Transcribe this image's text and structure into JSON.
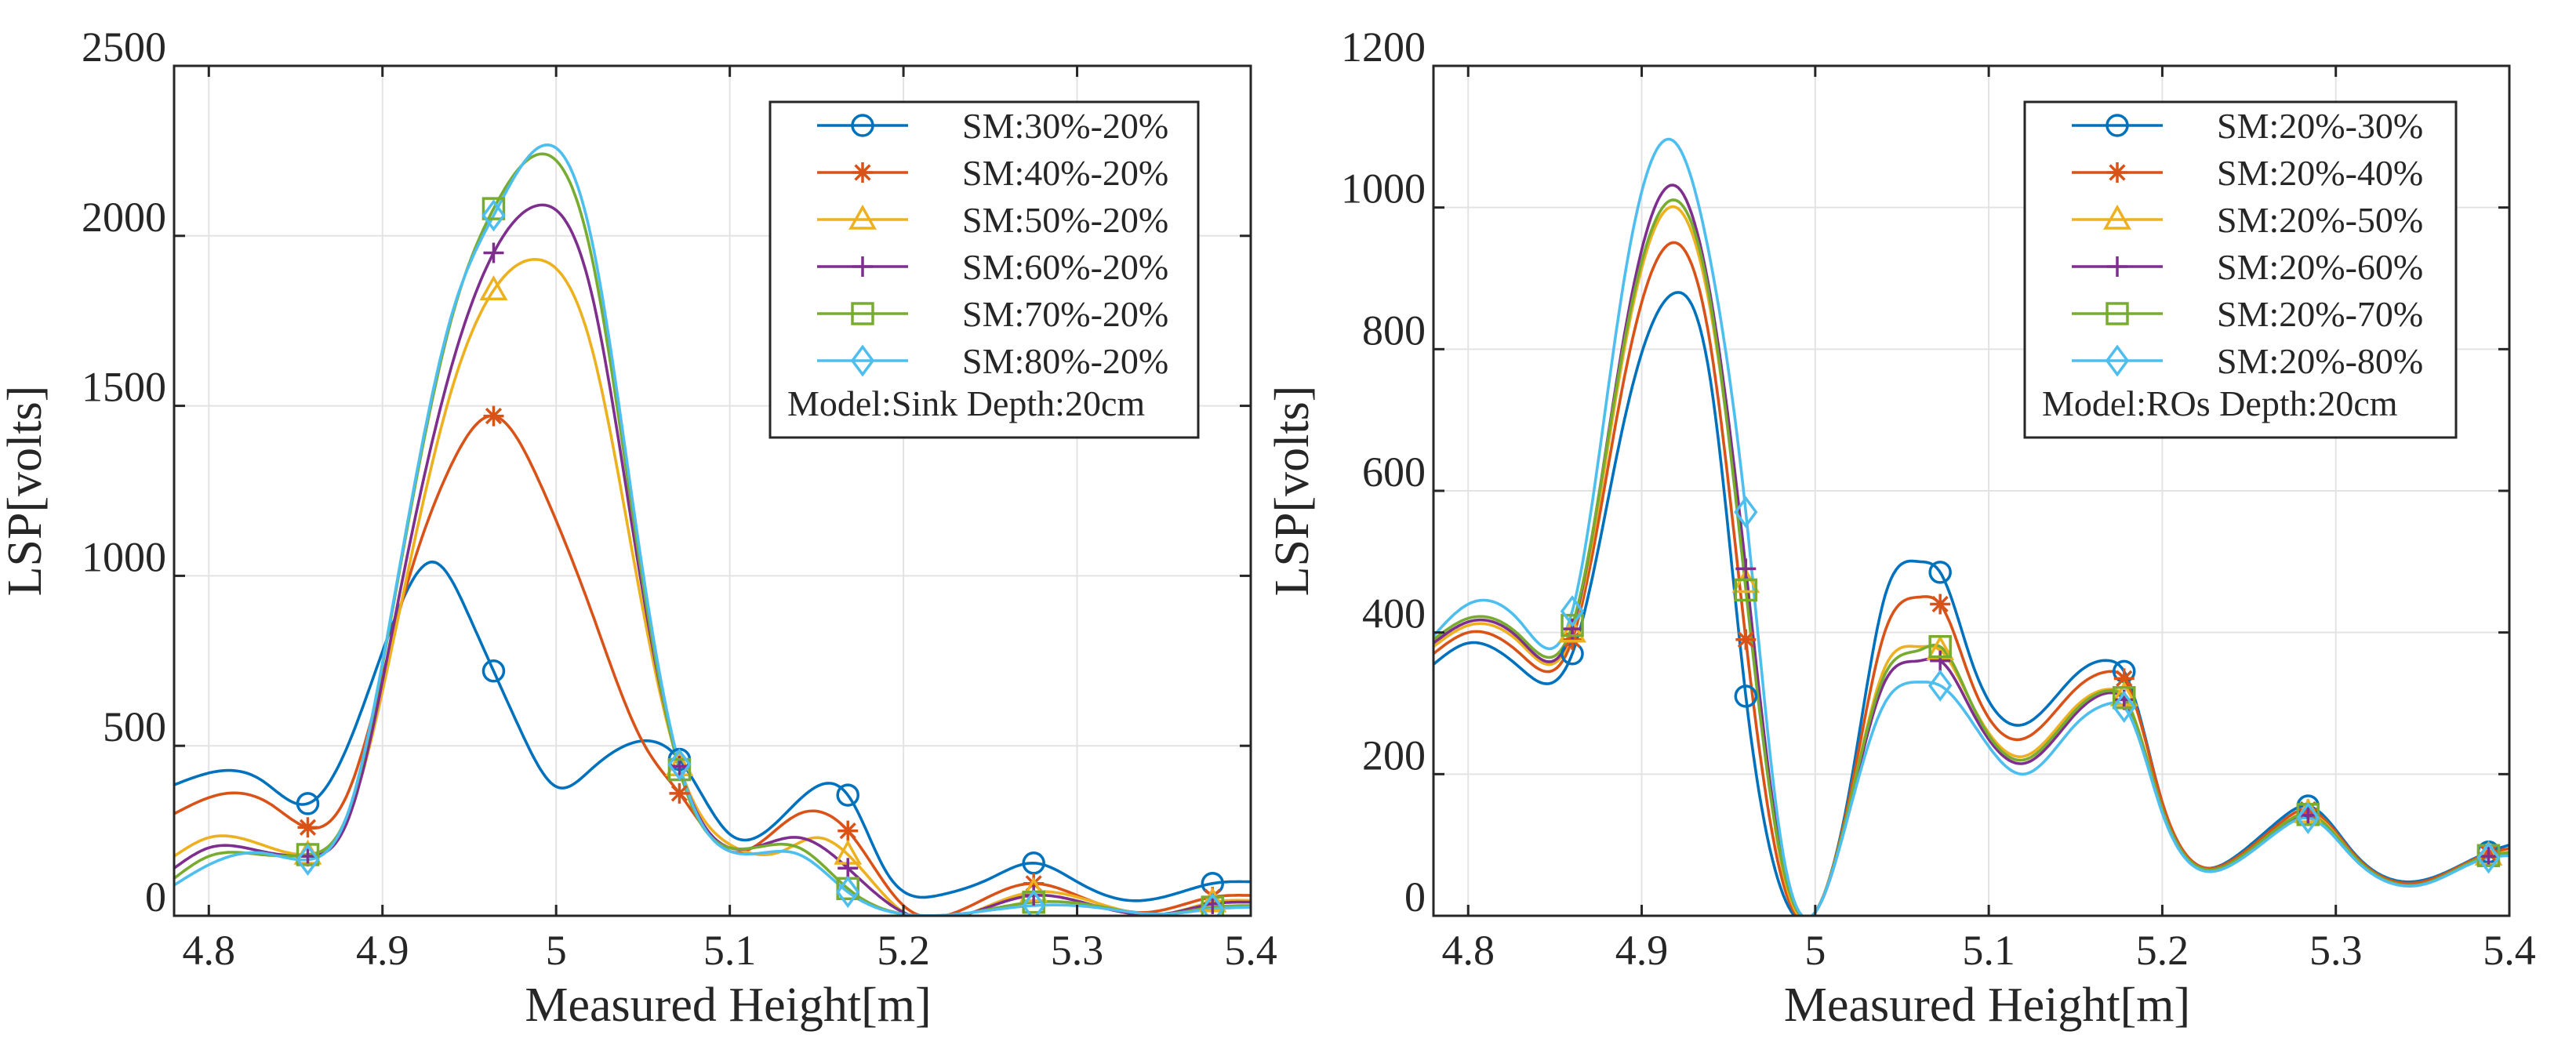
{
  "chart_data": [
    {
      "type": "line",
      "title": "",
      "xlabel": "Measured Height[m]",
      "ylabel": "LSP[volts]",
      "xlim": [
        4.78,
        5.4
      ],
      "ylim": [
        0,
        2500
      ],
      "xticks": [
        4.8,
        4.9,
        5,
        5.1,
        5.2,
        5.3,
        5.4
      ],
      "xtick_labels": [
        "4.8",
        "4.9",
        "5",
        "5.1",
        "5.2",
        "5.3",
        "5.4"
      ],
      "yticks": [
        0,
        500,
        1000,
        1500,
        2000,
        2500
      ],
      "ytick_labels": [
        "0",
        "500",
        "1000",
        "1500",
        "2000",
        "2500"
      ],
      "grid": true,
      "legend_position": "top-right",
      "annotation": "Model:Sink  Depth:20cm",
      "marker_x": [
        4.857,
        4.964,
        5.071,
        5.168,
        5.275,
        5.378
      ],
      "series": [
        {
          "name": "SM:30%-20%",
          "marker": "circle",
          "color": "#0072BD",
          "x": [
            4.78,
            4.8,
            4.83,
            4.857,
            4.88,
            4.91,
            4.93,
            4.95,
            4.964,
            4.98,
            5.0,
            5.02,
            5.045,
            5.071,
            5.1,
            5.13,
            5.15,
            5.168,
            5.19,
            5.22,
            5.25,
            5.275,
            5.3,
            5.33,
            5.36,
            5.378,
            5.4
          ],
          "values": [
            385,
            420,
            400,
            330,
            500,
            910,
            1040,
            880,
            720,
            540,
            380,
            430,
            510,
            460,
            240,
            290,
            380,
            355,
            130,
            60,
            110,
            155,
            100,
            45,
            70,
            95,
            100
          ]
        },
        {
          "name": "SM:40%-20%",
          "marker": "asterisk",
          "color": "#D95319",
          "x": [
            4.78,
            4.81,
            4.835,
            4.857,
            4.88,
            4.91,
            4.94,
            4.964,
            4.99,
            5.02,
            5.05,
            5.071,
            5.1,
            5.14,
            5.168,
            5.2,
            5.23,
            5.26,
            5.275,
            5.3,
            5.34,
            5.378,
            5.4
          ],
          "values": [
            300,
            360,
            330,
            260,
            360,
            900,
            1330,
            1470,
            1280,
            900,
            510,
            360,
            190,
            300,
            250,
            30,
            10,
            80,
            95,
            60,
            10,
            55,
            60
          ]
        },
        {
          "name": "SM:50%-20%",
          "marker": "triangle",
          "color": "#EDB120",
          "x": [
            4.78,
            4.8,
            4.83,
            4.857,
            4.88,
            4.91,
            4.94,
            4.964,
            4.99,
            5.02,
            5.05,
            5.071,
            5.1,
            5.13,
            5.15,
            5.168,
            5.2,
            5.24,
            5.275,
            5.31,
            5.35,
            5.378,
            5.4
          ],
          "values": [
            175,
            230,
            210,
            180,
            290,
            900,
            1550,
            1840,
            1930,
            1680,
            900,
            440,
            210,
            190,
            230,
            180,
            10,
            10,
            70,
            40,
            5,
            40,
            45
          ]
        },
        {
          "name": "SM:60%-20%",
          "marker": "plus",
          "color": "#7E2F8E",
          "x": [
            4.78,
            4.8,
            4.83,
            4.857,
            4.88,
            4.91,
            4.94,
            4.964,
            4.99,
            5.02,
            5.05,
            5.071,
            5.1,
            5.14,
            5.168,
            5.2,
            5.24,
            5.275,
            5.31,
            5.35,
            5.378,
            5.4
          ],
          "values": [
            140,
            200,
            190,
            175,
            280,
            950,
            1620,
            1950,
            2090,
            1840,
            950,
            440,
            200,
            230,
            140,
            10,
            10,
            60,
            30,
            5,
            35,
            40
          ]
        },
        {
          "name": "SM:70%-20%",
          "marker": "square",
          "color": "#77AC30",
          "x": [
            4.78,
            4.8,
            4.83,
            4.857,
            4.88,
            4.91,
            4.94,
            4.964,
            4.99,
            5.02,
            5.05,
            5.071,
            5.1,
            5.14,
            5.168,
            5.2,
            5.24,
            5.275,
            5.31,
            5.35,
            5.378,
            5.4
          ],
          "values": [
            110,
            175,
            180,
            180,
            300,
            1020,
            1760,
            2080,
            2240,
            1950,
            980,
            430,
            200,
            200,
            80,
            5,
            10,
            40,
            30,
            5,
            25,
            30
          ]
        },
        {
          "name": "SM:80%-20%",
          "marker": "diamond",
          "color": "#4DBEEE",
          "x": [
            4.78,
            4.8,
            4.83,
            4.857,
            4.88,
            4.91,
            4.94,
            4.964,
            4.99,
            5.02,
            5.05,
            5.071,
            5.1,
            5.14,
            5.168,
            5.2,
            5.24,
            5.275,
            5.31,
            5.35,
            5.378,
            5.4
          ],
          "values": [
            90,
            150,
            185,
            165,
            300,
            1030,
            1770,
            2060,
            2260,
            2000,
            1010,
            445,
            190,
            180,
            70,
            5,
            10,
            30,
            25,
            5,
            20,
            25
          ]
        }
      ]
    },
    {
      "type": "line",
      "title": "",
      "xlabel": "Measured Height[m]",
      "ylabel": "LSP[volts]",
      "xlim": [
        4.78,
        5.4
      ],
      "ylim": [
        0,
        1200
      ],
      "xticks": [
        4.8,
        4.9,
        5,
        5.1,
        5.2,
        5.3,
        5.4
      ],
      "xtick_labels": [
        "4.8",
        "4.9",
        "5",
        "5.1",
        "5.2",
        "5.3",
        "5.4"
      ],
      "yticks": [
        0,
        200,
        400,
        600,
        800,
        1000,
        1200
      ],
      "ytick_labels": [
        "0",
        "200",
        "400",
        "600",
        "800",
        "1000",
        "1200"
      ],
      "grid": true,
      "legend_position": "top-right",
      "annotation": "Model:ROs  Depth:20cm",
      "marker_x": [
        4.86,
        4.96,
        5.072,
        5.178,
        5.284,
        5.388
      ],
      "series": [
        {
          "name": "SM:20%-30%",
          "marker": "circle",
          "color": "#0072BD",
          "x": [
            4.78,
            4.8,
            4.83,
            4.86,
            4.89,
            4.92,
            4.94,
            4.96,
            4.98,
            5.0,
            5.02,
            5.04,
            5.06,
            5.072,
            5.09,
            5.12,
            5.15,
            5.17,
            5.178,
            5.2,
            5.24,
            5.27,
            5.284,
            5.31,
            5.35,
            5.388,
            5.4
          ],
          "values": [
            355,
            385,
            350,
            370,
            700,
            880,
            750,
            310,
            40,
            5,
            180,
            450,
            500,
            485,
            360,
            270,
            340,
            360,
            345,
            160,
            80,
            140,
            155,
            90,
            50,
            90,
            100
          ]
        },
        {
          "name": "SM:20%-40%",
          "marker": "asterisk",
          "color": "#D95319",
          "x": [
            4.78,
            4.8,
            4.83,
            4.86,
            4.89,
            4.92,
            4.94,
            4.96,
            4.98,
            5.0,
            5.02,
            5.04,
            5.06,
            5.072,
            5.09,
            5.12,
            5.15,
            5.17,
            5.178,
            5.2,
            5.24,
            5.27,
            5.284,
            5.31,
            5.35,
            5.388,
            5.4
          ],
          "values": [
            370,
            400,
            370,
            390,
            760,
            950,
            800,
            390,
            60,
            5,
            170,
            400,
            450,
            440,
            330,
            250,
            320,
            345,
            335,
            160,
            78,
            135,
            150,
            88,
            48,
            88,
            95
          ]
        },
        {
          "name": "SM:20%-50%",
          "marker": "triangle",
          "color": "#EDB120",
          "x": [
            4.78,
            4.8,
            4.83,
            4.86,
            4.89,
            4.92,
            4.94,
            4.96,
            4.98,
            5.0,
            5.02,
            5.04,
            5.06,
            5.072,
            5.09,
            5.12,
            5.15,
            5.17,
            5.178,
            5.2,
            5.24,
            5.27,
            5.284,
            5.31,
            5.35,
            5.388,
            5.4
          ],
          "values": [
            380,
            410,
            385,
            400,
            800,
            1000,
            850,
            470,
            80,
            5,
            160,
            350,
            380,
            375,
            300,
            225,
            295,
            320,
            310,
            150,
            75,
            130,
            145,
            85,
            45,
            85,
            90
          ]
        },
        {
          "name": "SM:20%-60%",
          "marker": "plus",
          "color": "#7E2F8E",
          "x": [
            4.78,
            4.8,
            4.83,
            4.86,
            4.89,
            4.92,
            4.94,
            4.96,
            4.98,
            5.0,
            5.02,
            5.04,
            5.06,
            5.072,
            5.09,
            5.12,
            5.15,
            5.17,
            5.178,
            5.2,
            5.24,
            5.27,
            5.284,
            5.31,
            5.35,
            5.388,
            5.4
          ],
          "values": [
            385,
            415,
            390,
            405,
            820,
            1030,
            870,
            490,
            90,
            5,
            155,
            330,
            360,
            360,
            290,
            215,
            285,
            315,
            305,
            148,
            75,
            128,
            142,
            84,
            45,
            84,
            88
          ]
        },
        {
          "name": "SM:20%-70%",
          "marker": "square",
          "color": "#77AC30",
          "x": [
            4.78,
            4.8,
            4.83,
            4.86,
            4.89,
            4.92,
            4.94,
            4.96,
            4.98,
            5.0,
            5.02,
            5.04,
            5.06,
            5.072,
            5.09,
            5.12,
            5.15,
            5.17,
            5.178,
            5.2,
            5.24,
            5.27,
            5.284,
            5.31,
            5.35,
            5.388,
            5.4
          ],
          "values": [
            390,
            420,
            395,
            410,
            810,
            1010,
            860,
            460,
            85,
            5,
            160,
            340,
            375,
            380,
            300,
            220,
            290,
            318,
            308,
            150,
            75,
            130,
            143,
            85,
            45,
            85,
            89
          ]
        },
        {
          "name": "SM:20%-80%",
          "marker": "diamond",
          "color": "#4DBEEE",
          "x": [
            4.78,
            4.8,
            4.83,
            4.86,
            4.89,
            4.92,
            4.94,
            4.96,
            4.98,
            5.0,
            5.02,
            5.04,
            5.06,
            5.072,
            5.09,
            5.12,
            5.15,
            5.17,
            5.178,
            5.2,
            5.24,
            5.27,
            5.284,
            5.31,
            5.35,
            5.388,
            5.4
          ],
          "values": [
            395,
            440,
            415,
            430,
            900,
            1090,
            920,
            570,
            110,
            5,
            150,
            300,
            330,
            325,
            275,
            200,
            270,
            300,
            295,
            145,
            72,
            125,
            138,
            82,
            44,
            82,
            85
          ]
        }
      ]
    }
  ]
}
